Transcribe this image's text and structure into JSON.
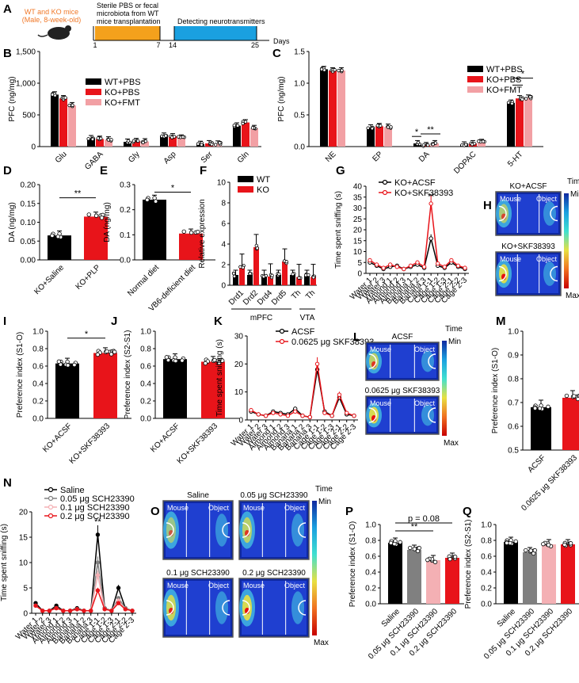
{
  "colors": {
    "wt": "#000000",
    "ko": "#e8141a",
    "fmt": "#f2a0a4",
    "orange": "#f4a11c",
    "blue": "#1aa0e0",
    "gray": "#808080",
    "pink": "#f4b0b4",
    "mid": "#e86070",
    "mouse": "#f07828"
  },
  "panelA": {
    "letter": "A",
    "mice_line1": "WT and KO mice",
    "mice_line2": "(Male, 8-week-old)",
    "box1_line1": "Sterile PBS or fecal",
    "box1_line2": "microbiota from WT",
    "box1_line3": "mice transplantation",
    "box2": "Detecting neurotransmitters",
    "ticks": [
      "1",
      "7",
      "14",
      "25"
    ],
    "axis_label": "Days"
  },
  "legendB": [
    "WT+PBS",
    "KO+PBS",
    "KO+FMT"
  ],
  "legendF": [
    "WT",
    "KO"
  ],
  "legendG": [
    "KO+ACSF",
    "KO+SKF38393"
  ],
  "legendK": [
    "ACSF",
    "0.0625 μg SKF38393"
  ],
  "legendN": [
    "Saline",
    "0.05 μg SCH23390",
    "0.1 μg SCH23390",
    "0.2 μg SCH23390"
  ],
  "heatmaps": {
    "time": "Time",
    "min": "Min",
    "max": "Max",
    "mouse": "Mouse",
    "object": "Object",
    "H": [
      "KO+ACSF",
      "KO+SKF38393"
    ],
    "L": [
      "ACSF",
      "0.0625 μg SKF38393"
    ],
    "O": [
      "Saline",
      "0.05 μg SCH23390",
      "0.1 μg SCH23390",
      "0.2 μg SCH23390"
    ]
  },
  "sniff_x": [
    "Water 1",
    "Water 2",
    "Water 3",
    "Almond 1",
    "Almond 2",
    "Almond 3",
    "Banana 1",
    "Banana 2",
    "Banana 3",
    "Cage 1-1",
    "Cage 1-2",
    "Cage 1-3",
    "Cage 2-1",
    "Cage 2-2",
    "Cage 2-3"
  ],
  "chart_data": [
    {
      "panel": "B",
      "type": "bar",
      "ylabel": "PFC (ng/mg)",
      "ylim": [
        0,
        1500
      ],
      "yticks": [
        "0",
        "500",
        "1,000",
        "1,500"
      ],
      "categories": [
        "Glu",
        "GABA",
        "Gly",
        "Asp",
        "Ser",
        "Gln"
      ],
      "series": [
        {
          "name": "WT+PBS",
          "values": [
            820,
            130,
            75,
            170,
            40,
            330
          ]
        },
        {
          "name": "KO+PBS",
          "values": [
            760,
            120,
            85,
            160,
            50,
            380
          ]
        },
        {
          "name": "KO+FMT",
          "values": [
            650,
            110,
            80,
            140,
            45,
            290
          ]
        }
      ],
      "sig": []
    },
    {
      "panel": "C",
      "type": "bar",
      "ylabel": "PFC (ng/mg)",
      "ylim": [
        0,
        1.5
      ],
      "yticks": [
        "0.0",
        "0.5",
        "1.0",
        "1.5"
      ],
      "categories": [
        "NE",
        "EP",
        "DA",
        "DOPAC",
        "5-HT"
      ],
      "series": [
        {
          "name": "WT+PBS",
          "values": [
            1.22,
            0.3,
            0.05,
            0.03,
            0.69
          ]
        },
        {
          "name": "KO+PBS",
          "values": [
            1.2,
            0.32,
            0.02,
            0.05,
            0.76
          ]
        },
        {
          "name": "KO+FMT",
          "values": [
            1.2,
            0.31,
            0.05,
            0.07,
            0.77
          ]
        }
      ],
      "sig": [
        "*",
        "**",
        "*",
        "*"
      ]
    },
    {
      "panel": "D",
      "type": "bar",
      "ylabel": "DA (ng/mg)",
      "ylim": [
        0,
        0.2
      ],
      "yticks": [
        "0.00",
        "0.05",
        "0.10",
        "0.15",
        "0.20"
      ],
      "categories": [
        "KO+Saline",
        "KO+PLP"
      ],
      "values": [
        0.065,
        0.115
      ],
      "sig": [
        "**"
      ]
    },
    {
      "panel": "E",
      "type": "bar",
      "ylabel": "DA (ng/mg)",
      "ylim": [
        0,
        0.3
      ],
      "yticks": [
        "0.0",
        "0.1",
        "0.2",
        "0.3"
      ],
      "categories": [
        "Normal diet",
        "VB6-deficient diet"
      ],
      "values": [
        0.24,
        0.105
      ],
      "sig": [
        "*"
      ]
    },
    {
      "panel": "F",
      "type": "bar",
      "ylabel": "Relative expression",
      "ylim": [
        0,
        10
      ],
      "yticks": [
        "0",
        "2",
        "4",
        "6",
        "8",
        "10"
      ],
      "categories": [
        "Drd1",
        "Drd2",
        "Drd4",
        "Drd5",
        "Th",
        "Th"
      ],
      "groups": [
        "mPFC",
        "VTA"
      ],
      "series": [
        {
          "name": "WT",
          "values": [
            1,
            1,
            1,
            1,
            1,
            1
          ]
        },
        {
          "name": "KO",
          "values": [
            1.8,
            3.7,
            0.85,
            2.3,
            0.8,
            0.8
          ]
        }
      ]
    },
    {
      "panel": "G",
      "type": "line",
      "ylabel": "Time spent sniffing (s)",
      "ylim": [
        0,
        40
      ],
      "yticks": [
        "0",
        "5",
        "10",
        "15",
        "20",
        "25",
        "30",
        "35",
        "40"
      ],
      "series": [
        {
          "name": "KO+ACSF",
          "values": [
            5,
            3.5,
            2,
            3,
            3.5,
            2,
            3,
            4,
            2.5,
            16,
            3.5,
            2.5,
            5,
            3,
            2
          ]
        },
        {
          "name": "KO+SKF38393",
          "values": [
            6,
            4,
            2.5,
            4,
            3,
            2,
            3.5,
            5,
            3,
            32,
            4.5,
            3,
            6,
            3.5,
            2.5
          ]
        }
      ],
      "sig": [
        "**"
      ]
    },
    {
      "panel": "I",
      "type": "bar",
      "ylabel": "Preference index (S1-O)",
      "ylim": [
        0,
        1
      ],
      "yticks": [
        "0.0",
        "0.2",
        "0.4",
        "0.6",
        "0.8",
        "1.0"
      ],
      "categories": [
        "KO+ACSF",
        "KO+SKF38393"
      ],
      "values": [
        0.63,
        0.75
      ],
      "sig": [
        "*"
      ]
    },
    {
      "panel": "J",
      "type": "bar",
      "ylabel": "Preference index (S2-S1)",
      "ylim": [
        0,
        1
      ],
      "yticks": [
        "0.0",
        "0.2",
        "0.4",
        "0.6",
        "0.8",
        "1.0"
      ],
      "categories": [
        "KO+ACSF",
        "KO+SKF38393"
      ],
      "values": [
        0.68,
        0.65
      ]
    },
    {
      "panel": "K",
      "type": "line",
      "ylabel": "Time spent sniffing (s)",
      "ylim": [
        0,
        30
      ],
      "yticks": [
        "0",
        "10",
        "20",
        "30"
      ],
      "series": [
        {
          "name": "ACSF",
          "values": [
            3,
            2,
            1.5,
            3,
            2.5,
            2,
            4,
            1.5,
            1,
            18,
            3,
            1.5,
            8,
            2,
            1.5
          ]
        },
        {
          "name": "0.0625 μg SKF38393",
          "values": [
            3.5,
            2,
            1.5,
            2.5,
            2,
            1.5,
            3,
            1.5,
            1,
            20,
            2.5,
            1.5,
            9,
            2.5,
            1.5
          ]
        }
      ]
    },
    {
      "panel": "M",
      "type": "bar",
      "ylabel": "Preference index (S1-O)",
      "ylim": [
        0.5,
        1
      ],
      "yticks": [
        "0.5",
        "0.6",
        "0.7",
        "0.8",
        "0.9",
        "1.0"
      ],
      "categories": [
        "ACSF",
        "0.0625 μg SKF38393"
      ],
      "values": [
        0.68,
        0.72
      ]
    },
    {
      "panel": "N",
      "type": "line",
      "ylabel": "Time spent sniffing (s)",
      "ylim": [
        0,
        20
      ],
      "yticks": [
        "0",
        "5",
        "10",
        "15",
        "20"
      ],
      "series": [
        {
          "name": "Saline",
          "values": [
            2,
            0.5,
            0.5,
            1.5,
            0.5,
            0.5,
            1,
            0.5,
            0.5,
            15.5,
            1,
            0.5,
            5,
            1,
            0.5
          ]
        },
        {
          "name": "0.05 μg SCH23390",
          "values": [
            1.5,
            0.5,
            0.5,
            1,
            0.5,
            0.5,
            0.8,
            0.5,
            0.5,
            10,
            1,
            0.5,
            3,
            1,
            0.5
          ]
        },
        {
          "name": "0.1 μg SCH23390",
          "values": [
            1.5,
            0.5,
            0.5,
            1,
            0.5,
            0.5,
            0.8,
            0.5,
            0.5,
            7.5,
            0.8,
            0.5,
            2.5,
            0.8,
            0.5
          ]
        },
        {
          "name": "0.2 μg SCH23390",
          "values": [
            1.5,
            0.5,
            0.5,
            1,
            0.5,
            0.5,
            0.8,
            0.5,
            0.5,
            4.5,
            0.8,
            0.5,
            2,
            0.8,
            0.5
          ]
        }
      ],
      "sig": [
        "**"
      ]
    },
    {
      "panel": "P",
      "type": "bar",
      "ylabel": "Preference index (S1-O)",
      "ylim": [
        0,
        1
      ],
      "yticks": [
        "0.0",
        "0.2",
        "0.4",
        "0.6",
        "0.8",
        "1.0"
      ],
      "categories": [
        "Saline",
        "0.05 μg SCH23390",
        "0.1 μg SCH23390",
        "0.2 μg SCH23390"
      ],
      "values": [
        0.77,
        0.68,
        0.55,
        0.58
      ],
      "sig": [
        "**",
        "p = 0.08"
      ]
    },
    {
      "panel": "Q",
      "type": "bar",
      "ylabel": "Preference index (S2-S1)",
      "ylim": [
        0,
        1
      ],
      "yticks": [
        "0.0",
        "0.2",
        "0.4",
        "0.6",
        "0.8",
        "1.0"
      ],
      "categories": [
        "Saline",
        "0.05 μg SCH23390",
        "0.1 μg SCH23390",
        "0.2 μg SCH23390"
      ],
      "values": [
        0.78,
        0.65,
        0.75,
        0.75
      ]
    }
  ]
}
